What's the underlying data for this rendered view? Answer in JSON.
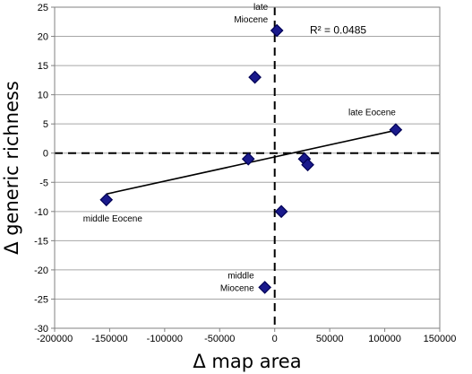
{
  "chart_data": {
    "type": "scatter",
    "xlabel": "Δ map area",
    "ylabel": "Δ generic richness",
    "xlim": [
      -200000,
      150000
    ],
    "ylim": [
      -30,
      25
    ],
    "xticks": [
      -200000,
      -150000,
      -100000,
      -50000,
      0,
      50000,
      100000,
      150000
    ],
    "yticks": [
      -30,
      -25,
      -20,
      -15,
      -10,
      -5,
      0,
      5,
      10,
      15,
      20,
      25
    ],
    "grid": "horizontal",
    "points": [
      {
        "x": -153000,
        "y": -8
      },
      {
        "x": -18000,
        "y": 13
      },
      {
        "x": -24000,
        "y": -1
      },
      {
        "x": 2000,
        "y": 21
      },
      {
        "x": 6000,
        "y": -10
      },
      {
        "x": -9000,
        "y": -23
      },
      {
        "x": 27000,
        "y": -1
      },
      {
        "x": 30000,
        "y": -2
      },
      {
        "x": 110000,
        "y": 4
      }
    ],
    "trendline": {
      "x": [
        -153000,
        110000
      ],
      "y": [
        -7,
        3.9
      ]
    },
    "reference_lines": {
      "x": 0,
      "y": 0
    },
    "r2_label": "R² = 0.0485",
    "annotations": [
      {
        "lines": [
          "late",
          "Miocene"
        ],
        "x": 2000,
        "y": 21,
        "align": "end"
      },
      {
        "lines": [
          "late Eocene"
        ],
        "x": 110000,
        "y": 4,
        "align": "end"
      },
      {
        "lines": [
          "middle Eocene"
        ],
        "x": -153000,
        "y": -8,
        "align": "start"
      },
      {
        "lines": [
          "middle",
          "Miocene"
        ],
        "x": -9000,
        "y": -23,
        "align": "end"
      }
    ],
    "colors": {
      "marker": "#1a1a8c",
      "marker_stroke": "#000055",
      "gridline": "#a6a6a6",
      "line": "#000000"
    }
  }
}
